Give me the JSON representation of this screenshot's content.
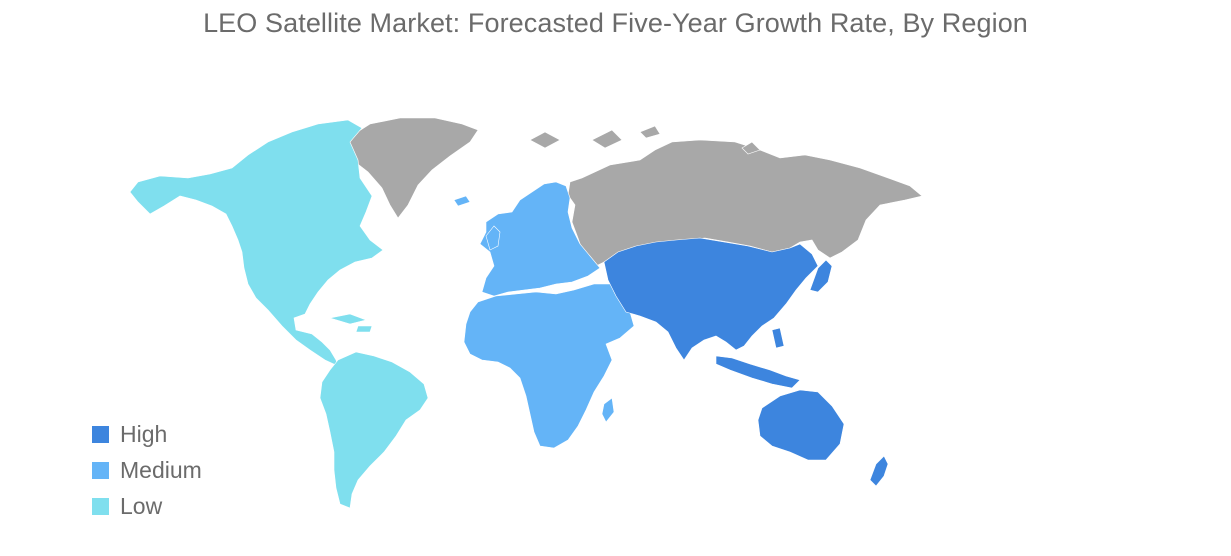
{
  "title": "LEO Satellite Market: Forecasted Five-Year Growth Rate, By Region",
  "colors": {
    "high": "#3d85de",
    "medium": "#64b4f7",
    "low": "#7fdfee",
    "no_data": "#a8a8a8"
  },
  "legend": [
    {
      "label": "High",
      "category": "high"
    },
    {
      "label": "Medium",
      "category": "medium"
    },
    {
      "label": "Low",
      "category": "low"
    }
  ],
  "regions": [
    {
      "name": "North America",
      "category": "low"
    },
    {
      "name": "South America",
      "category": "low"
    },
    {
      "name": "Europe",
      "category": "medium"
    },
    {
      "name": "Middle East and Africa",
      "category": "medium"
    },
    {
      "name": "Asia-Pacific",
      "category": "high"
    },
    {
      "name": "Greenland",
      "category": "no_data"
    },
    {
      "name": "Russia",
      "category": "no_data"
    }
  ]
}
